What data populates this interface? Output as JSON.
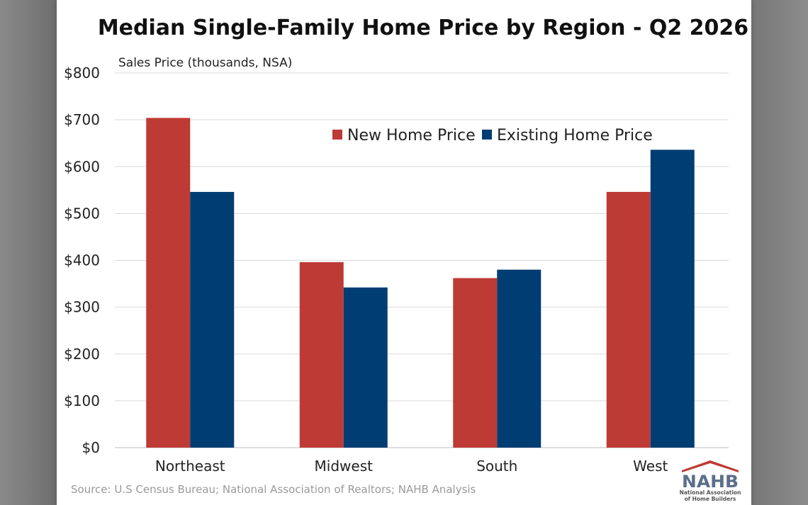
{
  "chart_data": {
    "type": "bar",
    "title": "Median Single-Family Home Price by Region - Q2 2026",
    "ylabel": "Sales Price (thousands, NSA)",
    "xlabel": "",
    "categories": [
      "Northeast",
      "Midwest",
      "South",
      "West"
    ],
    "series": [
      {
        "name": "New Home Price",
        "color": "#be3a34",
        "values": [
          704,
          396,
          362,
          546
        ]
      },
      {
        "name": "Existing Home Price",
        "color": "#003d73",
        "values": [
          546,
          342,
          380,
          636
        ]
      }
    ],
    "ylim": [
      0,
      800
    ],
    "yticks": [
      0,
      100,
      200,
      300,
      400,
      500,
      600,
      700,
      800
    ],
    "ytick_labels": [
      "$0",
      "$100",
      "$200",
      "$300",
      "$400",
      "$500",
      "$600",
      "$700",
      "$800"
    ],
    "grid": true,
    "legend_position": "top-right"
  },
  "source": "Source: U.S Census Bureau; National Association of Realtors; NAHB Analysis",
  "logo": {
    "acronym": "NAHB",
    "line1": "National Association",
    "line2": "of Home Builders",
    "colors": {
      "primary": "#5b6f8a",
      "accent": "#be3a34"
    }
  }
}
